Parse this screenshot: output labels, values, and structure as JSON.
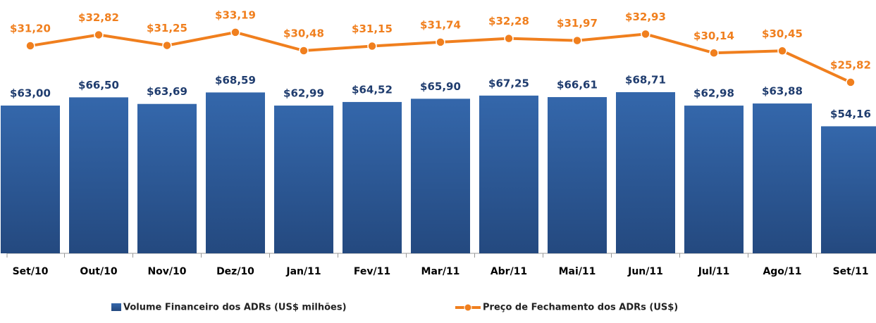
{
  "chart_data": {
    "type": "bar_line",
    "categories": [
      "Set/10",
      "Out/10",
      "Nov/10",
      "Dez/10",
      "Jan/11",
      "Fev/11",
      "Mar/11",
      "Abr/11",
      "Mai/11",
      "Jun/11",
      "Jul/11",
      "Ago/11",
      "Set/11"
    ],
    "series": [
      {
        "name": "Volume Financeiro dos ADRs (US$ milhões)",
        "type": "bar",
        "color": "#2f5f9f",
        "values": [
          63.0,
          66.5,
          63.69,
          68.59,
          62.99,
          64.52,
          65.9,
          67.25,
          66.61,
          68.71,
          62.98,
          63.88,
          54.16
        ],
        "value_labels": [
          "$63,00",
          "$66,50",
          "$63,69",
          "$68,59",
          "$62,99",
          "$64,52",
          "$65,90",
          "$67,25",
          "$66,61",
          "$68,71",
          "$62,98",
          "$63,88",
          "$54,16"
        ]
      },
      {
        "name": "Preço de Fechamento dos ADRs (US$)",
        "type": "line",
        "axis": "y2",
        "color": "#f07f1e",
        "values": [
          31.2,
          32.82,
          31.25,
          33.19,
          30.48,
          31.15,
          31.74,
          32.28,
          31.97,
          32.93,
          30.14,
          30.45,
          25.82
        ],
        "value_labels": [
          "$31,20",
          "$32,82",
          "$31,25",
          "$33,19",
          "$30,48",
          "$31,15",
          "$31,74",
          "$32,28",
          "$31,97",
          "$32,93",
          "$30,14",
          "$30,45",
          "$25,82"
        ]
      }
    ],
    "ylim": [
      0,
      96
    ],
    "y2lim": [
      0.6,
      33.8
    ],
    "legend": "bottom"
  }
}
